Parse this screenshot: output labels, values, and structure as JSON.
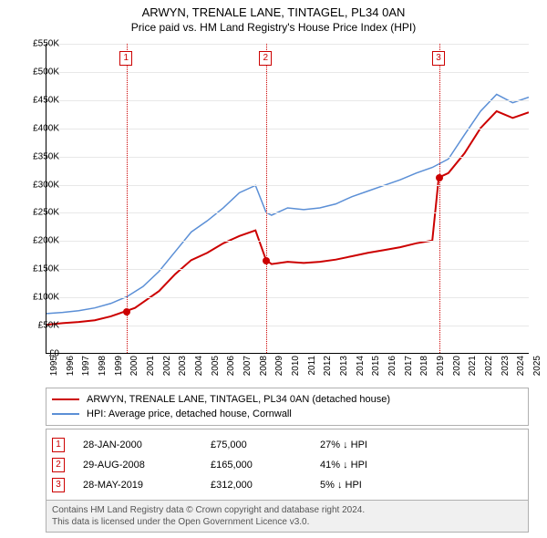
{
  "title": "ARWYN, TRENALE LANE, TINTAGEL, PL34 0AN",
  "subtitle": "Price paid vs. HM Land Registry's House Price Index (HPI)",
  "chart": {
    "type": "line",
    "background_color": "#ffffff",
    "grid_color": "#e8e8e8",
    "axis_color": "#000000",
    "ylim": [
      0,
      550
    ],
    "ytick_step": 50,
    "ytick_prefix": "£",
    "ytick_suffix": "K",
    "yticks": [
      "£0",
      "£50K",
      "£100K",
      "£150K",
      "£200K",
      "£250K",
      "£300K",
      "£350K",
      "£400K",
      "£450K",
      "£500K",
      "£550K"
    ],
    "xlim": [
      1995,
      2025
    ],
    "xticks": [
      "1995",
      "1996",
      "1997",
      "1998",
      "1999",
      "2000",
      "2001",
      "2002",
      "2003",
      "2004",
      "2005",
      "2006",
      "2007",
      "2008",
      "2009",
      "2010",
      "2011",
      "2012",
      "2013",
      "2014",
      "2015",
      "2016",
      "2017",
      "2018",
      "2019",
      "2020",
      "2021",
      "2022",
      "2023",
      "2024",
      "2025"
    ],
    "series": [
      {
        "name": "property",
        "label": "ARWYN, TRENALE LANE, TINTAGEL, PL34 0AN (detached house)",
        "color": "#cc0000",
        "line_width": 2,
        "data": [
          [
            1995,
            50
          ],
          [
            1996,
            53
          ],
          [
            1997,
            55
          ],
          [
            1998,
            58
          ],
          [
            1999,
            65
          ],
          [
            2000,
            75
          ],
          [
            2000.5,
            80
          ],
          [
            2001,
            90
          ],
          [
            2002,
            110
          ],
          [
            2003,
            140
          ],
          [
            2004,
            165
          ],
          [
            2005,
            178
          ],
          [
            2006,
            195
          ],
          [
            2007,
            208
          ],
          [
            2008,
            218
          ],
          [
            2008.66,
            165
          ],
          [
            2009,
            158
          ],
          [
            2010,
            162
          ],
          [
            2011,
            160
          ],
          [
            2012,
            162
          ],
          [
            2013,
            166
          ],
          [
            2014,
            172
          ],
          [
            2015,
            178
          ],
          [
            2016,
            183
          ],
          [
            2017,
            188
          ],
          [
            2018,
            195
          ],
          [
            2019,
            200
          ],
          [
            2019.4,
            312
          ],
          [
            2020,
            320
          ],
          [
            2021,
            355
          ],
          [
            2022,
            400
          ],
          [
            2023,
            430
          ],
          [
            2024,
            418
          ],
          [
            2025,
            428
          ]
        ]
      },
      {
        "name": "hpi",
        "label": "HPI: Average price, detached house, Cornwall",
        "color": "#5b8fd6",
        "line_width": 1.5,
        "data": [
          [
            1995,
            70
          ],
          [
            1996,
            72
          ],
          [
            1997,
            75
          ],
          [
            1998,
            80
          ],
          [
            1999,
            88
          ],
          [
            2000,
            100
          ],
          [
            2001,
            118
          ],
          [
            2002,
            145
          ],
          [
            2003,
            180
          ],
          [
            2004,
            215
          ],
          [
            2005,
            235
          ],
          [
            2006,
            258
          ],
          [
            2007,
            285
          ],
          [
            2008,
            298
          ],
          [
            2008.66,
            250
          ],
          [
            2009,
            245
          ],
          [
            2010,
            258
          ],
          [
            2011,
            255
          ],
          [
            2012,
            258
          ],
          [
            2013,
            265
          ],
          [
            2014,
            278
          ],
          [
            2015,
            288
          ],
          [
            2016,
            298
          ],
          [
            2017,
            308
          ],
          [
            2018,
            320
          ],
          [
            2019,
            330
          ],
          [
            2020,
            345
          ],
          [
            2021,
            388
          ],
          [
            2022,
            430
          ],
          [
            2023,
            460
          ],
          [
            2024,
            445
          ],
          [
            2025,
            455
          ]
        ]
      }
    ],
    "sale_markers": [
      {
        "n": "1",
        "x": 2000,
        "y": 75
      },
      {
        "n": "2",
        "x": 2008.66,
        "y": 165
      },
      {
        "n": "3",
        "x": 2019.4,
        "y": 312
      }
    ],
    "marker_box_color": "#cc0000",
    "dot_color": "#cc0000"
  },
  "legend": {
    "items": [
      {
        "color": "#cc0000",
        "label": "ARWYN, TRENALE LANE, TINTAGEL, PL34 0AN (detached house)"
      },
      {
        "color": "#5b8fd6",
        "label": "HPI: Average price, detached house, Cornwall"
      }
    ]
  },
  "annotations": [
    {
      "n": "1",
      "date": "28-JAN-2000",
      "price": "£75,000",
      "pct": "27% ↓ HPI"
    },
    {
      "n": "2",
      "date": "29-AUG-2008",
      "price": "£165,000",
      "pct": "41% ↓ HPI"
    },
    {
      "n": "3",
      "date": "28-MAY-2019",
      "price": "£312,000",
      "pct": "5% ↓ HPI"
    }
  ],
  "footer_line1": "Contains HM Land Registry data © Crown copyright and database right 2024.",
  "footer_line2": "This data is licensed under the Open Government Licence v3.0."
}
